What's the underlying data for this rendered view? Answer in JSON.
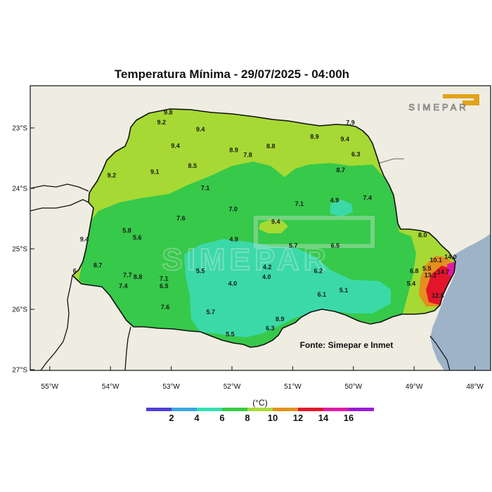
{
  "title": "Temperatura Mínima - 29/07/2025 - 04:00h",
  "logo_text": "SIMEPAR",
  "source_note": "Fonte: Simepar e Inmet",
  "lat_ticks": [
    "23°S",
    "24°S",
    "25°S",
    "26°S",
    "27°S"
  ],
  "lon_ticks": [
    "55°W",
    "54°W",
    "53°W",
    "52°W",
    "51°W",
    "50°W",
    "49°W",
    "48°W"
  ],
  "legend": {
    "unit": "(°C)",
    "labels": [
      "2",
      "4",
      "6",
      "8",
      "10",
      "12",
      "14",
      "16"
    ],
    "colors": [
      "#4b3fd6",
      "#3aa5e0",
      "#33e0b0",
      "#33cc44",
      "#a8dc38",
      "#e3901e",
      "#e3152a",
      "#e01aa5",
      "#9a1ad8"
    ]
  },
  "colors": {
    "ocean": "#9eb3c8",
    "land_outside": "#efece2",
    "band_6_8": "#3bd9a8",
    "band_8_10": "#36c94a",
    "band_10_12": "#a6d934"
  },
  "station_values": [
    {
      "lon": -53.05,
      "lat": -22.78,
      "label": "9.8"
    },
    {
      "lon": -53.16,
      "lat": -22.94,
      "label": "9.2"
    },
    {
      "lon": -52.52,
      "lat": -23.06,
      "label": "9.4"
    },
    {
      "lon": -52.93,
      "lat": -23.33,
      "label": "9.4"
    },
    {
      "lon": -51.97,
      "lat": -23.4,
      "label": "8.9"
    },
    {
      "lon": -51.36,
      "lat": -23.34,
      "label": "8.8"
    },
    {
      "lon": -51.74,
      "lat": -23.48,
      "label": "7.8"
    },
    {
      "lon": -50.64,
      "lat": -23.18,
      "label": "8.9"
    },
    {
      "lon": -50.05,
      "lat": -22.95,
      "label": "7.9"
    },
    {
      "lon": -50.14,
      "lat": -23.22,
      "label": "9.4"
    },
    {
      "lon": -49.96,
      "lat": -23.47,
      "label": "6.3"
    },
    {
      "lon": -50.21,
      "lat": -23.73,
      "label": "8.7"
    },
    {
      "lon": -52.65,
      "lat": -23.66,
      "label": "8.5"
    },
    {
      "lon": -53.27,
      "lat": -23.76,
      "label": "9.1"
    },
    {
      "lon": -53.98,
      "lat": -23.82,
      "label": "9.2"
    },
    {
      "lon": -52.44,
      "lat": -24.03,
      "label": "7.1"
    },
    {
      "lon": -49.77,
      "lat": -24.19,
      "label": "7.4"
    },
    {
      "lon": -50.31,
      "lat": -24.23,
      "label": "4.9"
    },
    {
      "lon": -50.89,
      "lat": -24.29,
      "label": "7.1"
    },
    {
      "lon": -51.98,
      "lat": -24.38,
      "label": "7.0"
    },
    {
      "lon": -52.84,
      "lat": -24.53,
      "label": "7.6"
    },
    {
      "lon": -51.28,
      "lat": -24.59,
      "label": "9.4"
    },
    {
      "lon": -53.73,
      "lat": -24.73,
      "label": "5.8"
    },
    {
      "lon": -53.56,
      "lat": -24.85,
      "label": "5.6"
    },
    {
      "lon": -54.43,
      "lat": -24.88,
      "label": "9.4"
    },
    {
      "lon": -51.97,
      "lat": -24.88,
      "label": "4.9"
    },
    {
      "lon": -50.99,
      "lat": -24.98,
      "label": "5.7"
    },
    {
      "lon": -50.3,
      "lat": -24.98,
      "label": "6.5"
    },
    {
      "lon": -48.86,
      "lat": -24.81,
      "label": "8.0"
    },
    {
      "lon": -54.59,
      "lat": -25.4,
      "label": "6"
    },
    {
      "lon": -54.21,
      "lat": -25.31,
      "label": "8.7"
    },
    {
      "lon": -52.52,
      "lat": -25.4,
      "label": "5.5"
    },
    {
      "lon": -51.42,
      "lat": -25.34,
      "label": "4.2"
    },
    {
      "lon": -50.58,
      "lat": -25.4,
      "label": "6.2"
    },
    {
      "lon": -49.0,
      "lat": -25.4,
      "label": "6.8"
    },
    {
      "lon": -48.79,
      "lat": -25.36,
      "label": "5.5"
    },
    {
      "lon": -48.64,
      "lat": -25.22,
      "label": "10.1"
    },
    {
      "lon": -48.4,
      "lat": -25.17,
      "label": "14.0"
    },
    {
      "lon": -48.52,
      "lat": -25.42,
      "label": "14.7"
    },
    {
      "lon": -48.73,
      "lat": -25.47,
      "label": "13.2"
    },
    {
      "lon": -48.61,
      "lat": -25.81,
      "label": "12.8"
    },
    {
      "lon": -53.72,
      "lat": -25.47,
      "label": "7.7"
    },
    {
      "lon": -53.55,
      "lat": -25.5,
      "label": "8.8"
    },
    {
      "lon": -53.12,
      "lat": -25.53,
      "label": "7.1"
    },
    {
      "lon": -53.79,
      "lat": -25.65,
      "label": "7.4"
    },
    {
      "lon": -53.12,
      "lat": -25.65,
      "label": "6.5"
    },
    {
      "lon": -51.43,
      "lat": -25.5,
      "label": "4.0"
    },
    {
      "lon": -51.99,
      "lat": -25.61,
      "label": "4.0"
    },
    {
      "lon": -49.05,
      "lat": -25.61,
      "label": "5.4"
    },
    {
      "lon": -50.16,
      "lat": -25.72,
      "label": "5.1"
    },
    {
      "lon": -50.52,
      "lat": -25.79,
      "label": "6.1"
    },
    {
      "lon": -53.1,
      "lat": -26.0,
      "label": "7.6"
    },
    {
      "lon": -52.35,
      "lat": -26.08,
      "label": "5.7"
    },
    {
      "lon": -51.21,
      "lat": -26.2,
      "label": "8.9"
    },
    {
      "lon": -51.37,
      "lat": -26.35,
      "label": "6.3"
    },
    {
      "lon": -52.03,
      "lat": -26.45,
      "label": "5.5"
    }
  ]
}
